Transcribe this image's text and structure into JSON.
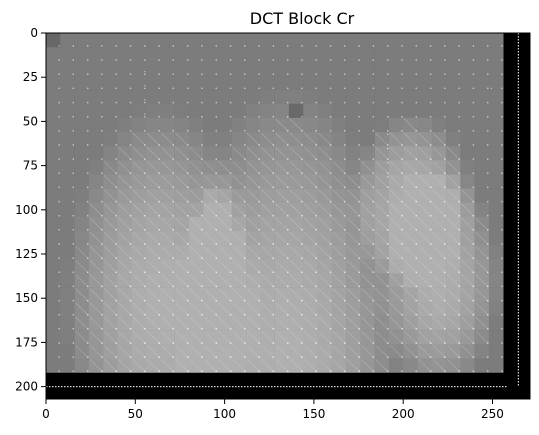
{
  "chart_data": {
    "type": "heatmap",
    "title": "DCT Block Cr",
    "xlabel": "",
    "ylabel": "",
    "colormap": "grayscale",
    "block_size": 8,
    "xlim": [
      0,
      271
    ],
    "ylim": [
      207,
      0
    ],
    "x_ticks": [
      0,
      50,
      100,
      150,
      200,
      250
    ],
    "y_ticks": [
      0,
      25,
      50,
      75,
      100,
      125,
      150,
      175,
      200
    ],
    "x_tick_labels": [
      "0",
      "50",
      "100",
      "150",
      "200",
      "250"
    ],
    "y_tick_labels": [
      "0",
      "25",
      "50",
      "75",
      "100",
      "125",
      "150",
      "175",
      "200"
    ],
    "content_extent": {
      "width": 256,
      "height": 192
    },
    "grid": false,
    "legend": "none"
  }
}
